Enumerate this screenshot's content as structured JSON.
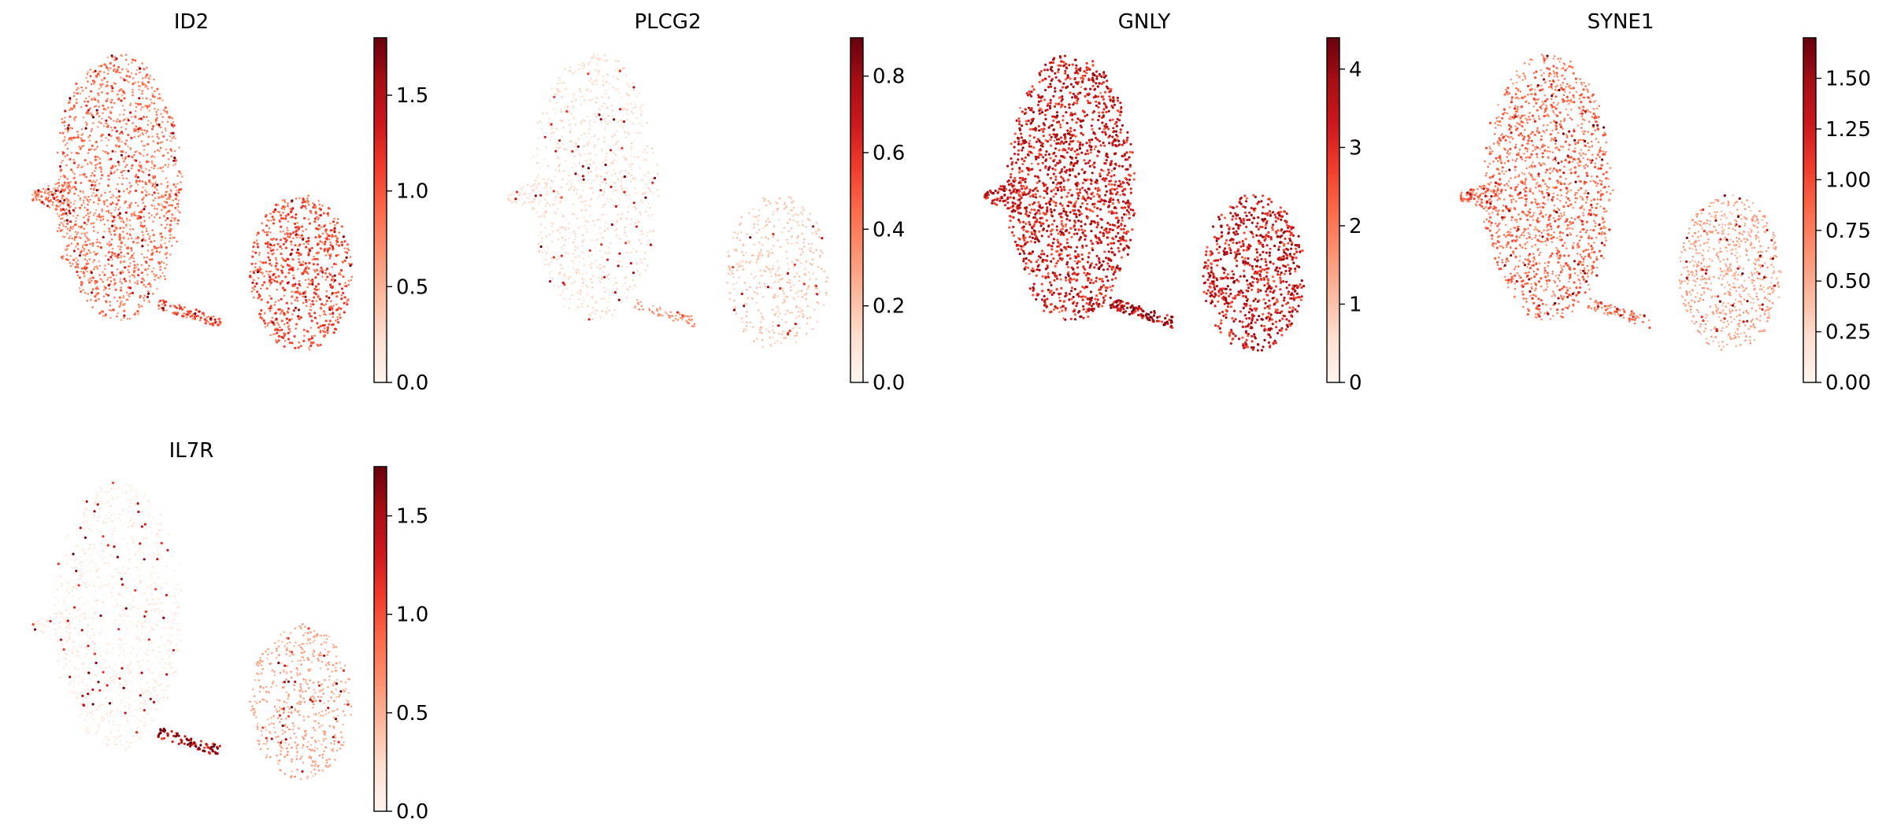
{
  "chart_data": [
    {
      "type": "scatter",
      "title": "ID2",
      "colormap": "Reds",
      "colorbar": {
        "range": [
          0,
          1.8
        ],
        "ticks": [
          0.0,
          0.5,
          1.0,
          1.5
        ],
        "tick_labels": [
          "0.0",
          "0.5",
          "1.0",
          "1.5"
        ]
      },
      "expression_pattern": {
        "left_cluster_level": 0.42,
        "right_cluster_level": 0.52,
        "tail_level": 0.5,
        "dot_density": 0.95
      }
    },
    {
      "type": "scatter",
      "title": "PLCG2",
      "colormap": "Reds",
      "colorbar": {
        "range": [
          0,
          0.9
        ],
        "ticks": [
          0.0,
          0.2,
          0.4,
          0.6,
          0.8
        ],
        "tick_labels": [
          "0.0",
          "0.2",
          "0.4",
          "0.6",
          "0.8"
        ]
      },
      "expression_pattern": {
        "left_cluster_level": 0.12,
        "right_cluster_level": 0.2,
        "tail_level": 0.35,
        "dot_density": 0.55
      }
    },
    {
      "type": "scatter",
      "title": "GNLY",
      "colormap": "Reds",
      "colorbar": {
        "range": [
          0,
          4.4
        ],
        "ticks": [
          0,
          1,
          2,
          3,
          4
        ],
        "tick_labels": [
          "0",
          "1",
          "2",
          "3",
          "4"
        ]
      },
      "expression_pattern": {
        "left_cluster_level": 0.7,
        "right_cluster_level": 0.72,
        "tail_level": 0.8,
        "dot_density": 1.0
      }
    },
    {
      "type": "scatter",
      "title": "SYNE1",
      "colormap": "Reds",
      "colorbar": {
        "range": [
          0,
          1.7
        ],
        "ticks": [
          0.0,
          0.25,
          0.5,
          0.75,
          1.0,
          1.25,
          1.5
        ],
        "tick_labels": [
          "0.00",
          "0.25",
          "0.50",
          "0.75",
          "1.00",
          "1.25",
          "1.50"
        ]
      },
      "expression_pattern": {
        "left_cluster_level": 0.45,
        "right_cluster_level": 0.3,
        "tail_level": 0.45,
        "dot_density": 0.92
      }
    },
    {
      "type": "scatter",
      "title": "IL7R",
      "colormap": "Reds",
      "colorbar": {
        "range": [
          0,
          1.75
        ],
        "ticks": [
          0.0,
          0.5,
          1.0,
          1.5
        ],
        "tick_labels": [
          "0.0",
          "0.5",
          "1.0",
          "1.5"
        ]
      },
      "expression_pattern": {
        "left_cluster_level": 0.04,
        "right_cluster_level": 0.3,
        "tail_level": 0.85,
        "dot_density": 0.7
      }
    }
  ],
  "colors": {
    "reds_low": "#fff5f0",
    "reds_mid": "#fb6a4a",
    "reds_high": "#67000d"
  }
}
